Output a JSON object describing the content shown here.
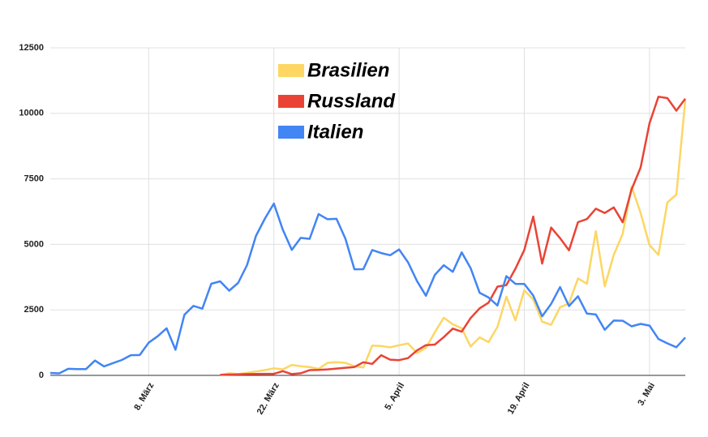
{
  "chart_data": {
    "type": "line",
    "categories": [
      null,
      null,
      null,
      null,
      null,
      null,
      null,
      null,
      null,
      null,
      null,
      "8. März",
      null,
      null,
      null,
      null,
      null,
      null,
      null,
      null,
      null,
      null,
      null,
      null,
      null,
      "22. März",
      null,
      null,
      null,
      null,
      null,
      null,
      null,
      null,
      null,
      null,
      null,
      null,
      null,
      "5. April",
      null,
      null,
      null,
      null,
      null,
      null,
      null,
      null,
      null,
      null,
      null,
      null,
      null,
      "19. April",
      null,
      null,
      null,
      null,
      null,
      null,
      null,
      null,
      null,
      null,
      null,
      null,
      null,
      "3. Mai",
      null,
      null,
      null,
      null
    ],
    "series": [
      {
        "name": "Brasilien",
        "color": "#fdd663",
        "values": [
          null,
          null,
          null,
          null,
          null,
          null,
          null,
          null,
          null,
          null,
          null,
          null,
          null,
          null,
          null,
          null,
          null,
          null,
          null,
          20,
          80,
          50,
          100,
          150,
          200,
          270,
          230,
          400,
          350,
          320,
          250,
          480,
          500,
          480,
          350,
          300,
          1140,
          1120,
          1070,
          1150,
          1220,
          850,
          1050,
          1650,
          2200,
          1950,
          1800,
          1100,
          1450,
          1270,
          1850,
          3000,
          2100,
          3250,
          2900,
          2050,
          1930,
          2600,
          2750,
          3700,
          3500,
          5500,
          3400,
          4600,
          5400,
          7200,
          6200,
          4970,
          4600,
          6600,
          6900,
          10500
        ]
      },
      {
        "name": "Russland",
        "color": "#ea4335",
        "values": [
          null,
          null,
          null,
          null,
          null,
          null,
          null,
          null,
          null,
          null,
          null,
          null,
          null,
          null,
          null,
          null,
          null,
          null,
          null,
          20,
          30,
          40,
          50,
          55,
          60,
          60,
          160,
          50,
          80,
          200,
          210,
          230,
          260,
          290,
          320,
          500,
          440,
          771,
          601,
          582,
          658,
          954,
          1154,
          1175,
          1459,
          1786,
          1667,
          2186,
          2558,
          2774,
          3388,
          3448,
          4070,
          4785,
          6060,
          4268,
          5642,
          5236,
          4774,
          5849,
          5966,
          6361,
          6198,
          6411,
          5841,
          7099,
          7933,
          9623,
          10633,
          10581,
          10102,
          10559
        ]
      },
      {
        "name": "Italien",
        "color": "#4285f4",
        "values": [
          93,
          78,
          250,
          238,
          240,
          566,
          342,
          466,
          587,
          769,
          778,
          1247,
          1492,
          1797,
          977,
          2313,
          2651,
          2547,
          3497,
          3590,
          3233,
          3526,
          4207,
          5322,
          5986,
          6557,
          5560,
          4789,
          5249,
          5210,
          6153,
          5959,
          5974,
          5217,
          4050,
          4053,
          4782,
          4668,
          4585,
          4805,
          4316,
          3599,
          3039,
          3836,
          4204,
          3951,
          4694,
          4092,
          3153,
          2972,
          2667,
          3786,
          3493,
          3491,
          3047,
          2256,
          2729,
          3370,
          2646,
          3021,
          2357,
          2324,
          1739,
          2091,
          2086,
          1872,
          1965,
          1900,
          1389,
          1221,
          1075,
          1444
        ]
      }
    ],
    "ylim": [
      0,
      12500
    ],
    "yticks": [
      0,
      2500,
      5000,
      7500,
      10000,
      12500
    ],
    "grid": true
  }
}
